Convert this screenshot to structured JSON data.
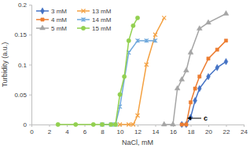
{
  "chart_data": {
    "type": "line",
    "x_label": "NaCl, mM",
    "y_label": "Turbidity (a.u.)",
    "annotation": "c",
    "xlim": [
      0,
      24
    ],
    "xticks": [
      0,
      2,
      4,
      6,
      8,
      10,
      12,
      14,
      16,
      18,
      20,
      22,
      24
    ],
    "ylim": [
      0,
      0.2
    ],
    "yticks": [
      0,
      0.05,
      0.1,
      0.15,
      0.2
    ],
    "grid": false,
    "legend": "top-left",
    "series": [
      {
        "name": "3 mM",
        "color": "#4472c4",
        "marker": "diamond",
        "x": [
          17,
          17.5,
          18,
          18.5,
          19,
          20,
          21,
          22
        ],
        "values": [
          0,
          0,
          0.012,
          0.04,
          0.06,
          0.08,
          0.095,
          0.105
        ]
      },
      {
        "name": "4 mM",
        "color": "#ed7d31",
        "marker": "square",
        "x": [
          17,
          17.5,
          18,
          18.5,
          19,
          20,
          21,
          22
        ],
        "values": [
          0,
          0,
          0.037,
          0.06,
          0.08,
          0.11,
          0.125,
          0.14
        ]
      },
      {
        "name": "5 mM",
        "color": "#a5a5a5",
        "marker": "triangle",
        "x": [
          15,
          16,
          16.5,
          17,
          17.5,
          18,
          19,
          20,
          22
        ],
        "values": [
          0,
          0,
          0.06,
          0.075,
          0.09,
          0.12,
          0.16,
          0.17,
          0.185
        ]
      },
      {
        "name": "13 mM",
        "color": "#f4a142",
        "marker": "x",
        "x": [
          10,
          11,
          11.5,
          12,
          13,
          14,
          15
        ],
        "values": [
          0,
          0,
          0,
          0.015,
          0.1,
          0.15,
          0.178
        ]
      },
      {
        "name": "14 mM",
        "color": "#6fa8dc",
        "marker": "star",
        "x": [
          8,
          9,
          9.5,
          10,
          11,
          12,
          13,
          14
        ],
        "values": [
          0,
          0,
          0,
          0.03,
          0.12,
          0.14,
          0.14,
          0.14
        ]
      },
      {
        "name": "15 mM",
        "color": "#92d050",
        "marker": "circle",
        "x": [
          3,
          5,
          7,
          8,
          9,
          9.5,
          10,
          10.5,
          11,
          11.5,
          12
        ],
        "values": [
          0,
          0,
          0,
          0,
          0,
          0,
          0.05,
          0.08,
          0.14,
          0.165,
          0.178
        ]
      }
    ]
  }
}
